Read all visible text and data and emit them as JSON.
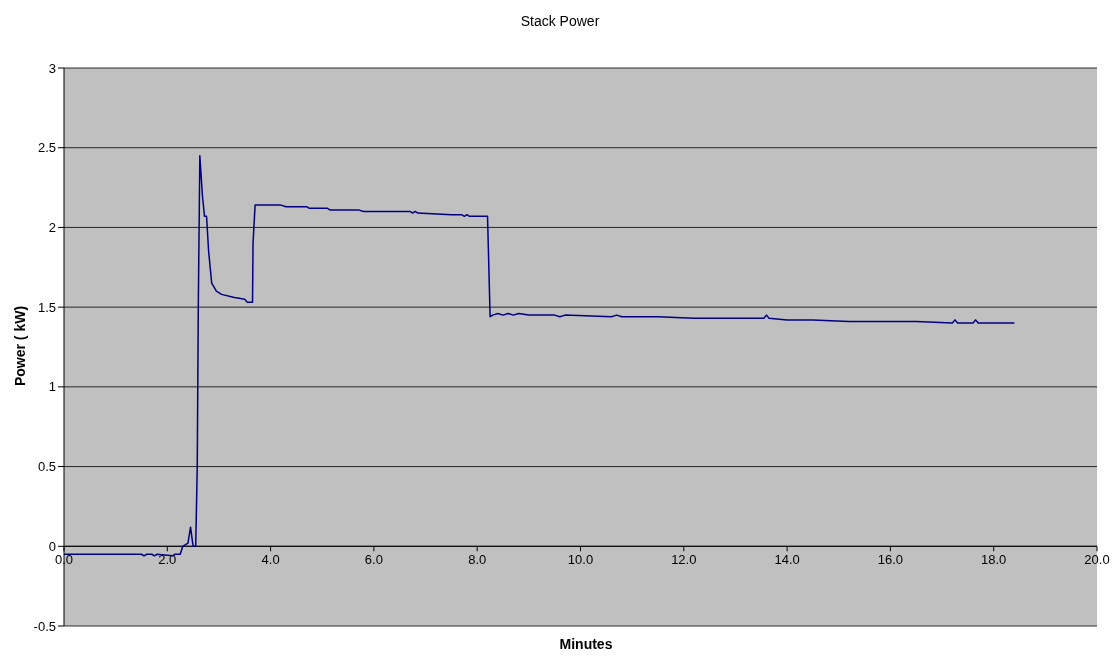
{
  "chart_data": {
    "type": "line",
    "title": "Stack Power",
    "xlabel": "Minutes",
    "ylabel": "Power ( kW)",
    "x": [
      0,
      1.5,
      1.55,
      1.6,
      1.7,
      1.75,
      1.8,
      2.1,
      2.15,
      2.25,
      2.3,
      2.4,
      2.45,
      2.5,
      2.55,
      2.58,
      2.6,
      2.63,
      2.68,
      2.72,
      2.76,
      2.8,
      2.86,
      2.95,
      3.05,
      3.3,
      3.5,
      3.55,
      3.65,
      3.66,
      3.7,
      4.2,
      4.3,
      4.7,
      4.75,
      5.1,
      5.15,
      5.7,
      5.8,
      6.7,
      6.75,
      6.8,
      6.85,
      7.5,
      7.7,
      7.75,
      7.8,
      7.85,
      8.2,
      8.25,
      8.3,
      8.4,
      8.5,
      8.6,
      8.7,
      8.8,
      9.0,
      9.5,
      9.6,
      9.7,
      10.6,
      10.7,
      10.8,
      11.5,
      12.2,
      12.3,
      13.0,
      13.55,
      13.6,
      13.65,
      14.0,
      14.5,
      15.2,
      15.4,
      16.0,
      16.5,
      17.2,
      17.25,
      17.3,
      17.6,
      17.65,
      17.7,
      18.4
    ],
    "values": [
      -0.05,
      -0.05,
      -0.06,
      -0.05,
      -0.05,
      -0.06,
      -0.05,
      -0.06,
      -0.05,
      -0.05,
      0,
      0.02,
      0.12,
      0,
      0,
      0.5,
      1.5,
      2.45,
      2.2,
      2.07,
      2.07,
      1.85,
      1.65,
      1.6,
      1.58,
      1.56,
      1.55,
      1.53,
      1.53,
      1.9,
      2.14,
      2.14,
      2.13,
      2.13,
      2.12,
      2.12,
      2.11,
      2.11,
      2.1,
      2.1,
      2.09,
      2.1,
      2.09,
      2.08,
      2.08,
      2.07,
      2.08,
      2.07,
      2.07,
      1.44,
      1.45,
      1.46,
      1.45,
      1.46,
      1.45,
      1.46,
      1.45,
      1.45,
      1.44,
      1.45,
      1.44,
      1.45,
      1.44,
      1.44,
      1.43,
      1.43,
      1.43,
      1.43,
      1.45,
      1.43,
      1.42,
      1.42,
      1.41,
      1.41,
      1.41,
      1.41,
      1.4,
      1.42,
      1.4,
      1.4,
      1.42,
      1.4,
      1.4
    ],
    "color": "#000080",
    "xlim": [
      0,
      20
    ],
    "xticks": [
      {
        "value": 0,
        "label": "0.0"
      },
      {
        "value": 2,
        "label": "2.0"
      },
      {
        "value": 4,
        "label": "4.0"
      },
      {
        "value": 6,
        "label": "6.0"
      },
      {
        "value": 8,
        "label": "8.0"
      },
      {
        "value": 10,
        "label": "10.0"
      },
      {
        "value": 12,
        "label": "12.0"
      },
      {
        "value": 14,
        "label": "14.0"
      },
      {
        "value": 16,
        "label": "16.0"
      },
      {
        "value": 18,
        "label": "18.0"
      },
      {
        "value": 20,
        "label": "20.0"
      }
    ],
    "ylim": [
      -0.5,
      3
    ],
    "yticks": [
      -0.5,
      0,
      0.5,
      1,
      1.5,
      2,
      2.5,
      3
    ],
    "grid": "y",
    "marker": "none"
  }
}
